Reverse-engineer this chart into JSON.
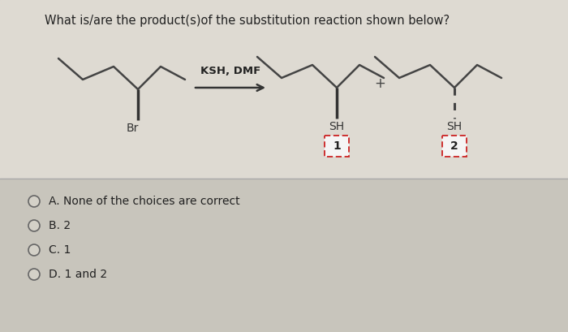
{
  "title": "What is/are the product(s)of the substitution reaction shown below?",
  "title_fontsize": 10.5,
  "bg_upper": "#d4d1c8",
  "bg_lower": "#c8c5bc",
  "choices": [
    "A. None of the choices are correct",
    "B. 2",
    "C. 1",
    "D. 1 and 2"
  ],
  "reagent_label": "KSH, DMF",
  "product1_label": "SH",
  "product2_label": "SH",
  "num1": "1",
  "num2": "2",
  "plus_sign": "+"
}
